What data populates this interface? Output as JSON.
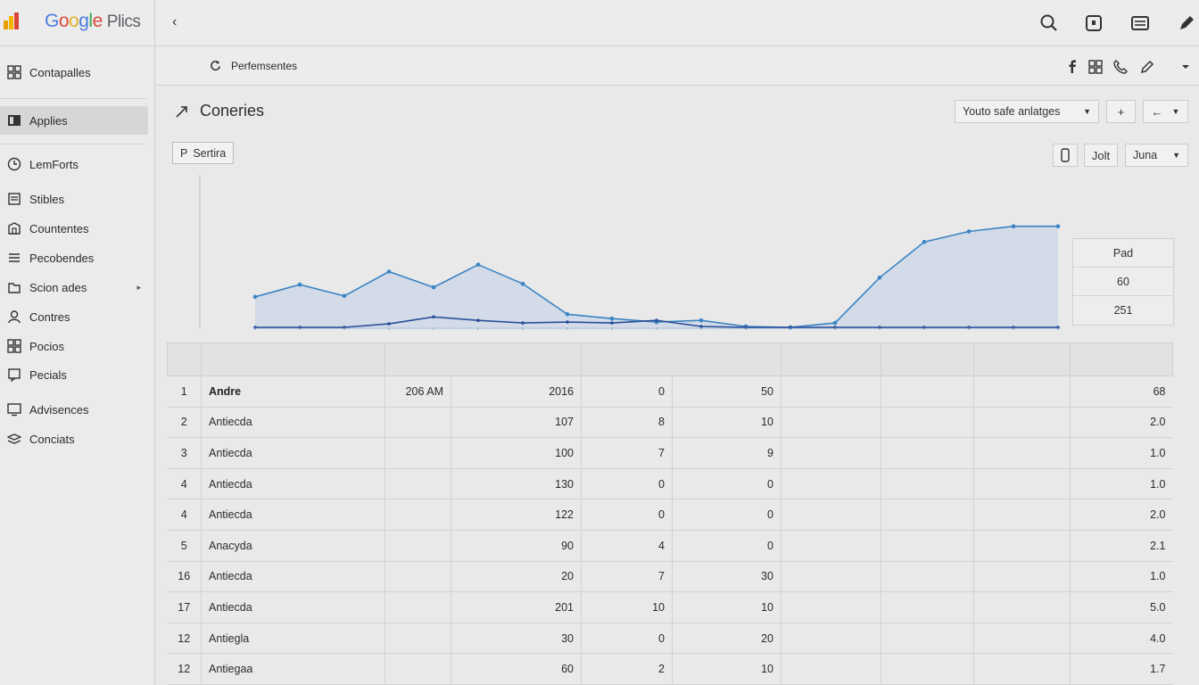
{
  "brand": {
    "g1": "G",
    "g2": "o",
    "g3": "o",
    "g4": "g",
    "g5": "l",
    "g6": "e",
    "product": "Plics"
  },
  "sidebar": {
    "items": [
      {
        "label": "Contapalles",
        "icon": "grid-icon"
      },
      {
        "label": "Applies",
        "icon": "layout-icon",
        "active": true
      },
      {
        "label": "LemForts",
        "icon": "clock-icon"
      },
      {
        "label": "Stibles",
        "icon": "document-icon"
      },
      {
        "label": "Countentes",
        "icon": "building-icon"
      },
      {
        "label": "Pecobendes",
        "icon": "list-icon"
      },
      {
        "label": "Scion ades",
        "icon": "folder-icon",
        "has_submenu": true
      },
      {
        "label": "Contres",
        "icon": "person-icon"
      },
      {
        "label": "Pocios",
        "icon": "grid-icon"
      },
      {
        "label": "Pecials",
        "icon": "message-icon"
      },
      {
        "label": "Advisences",
        "icon": "monitor-icon"
      },
      {
        "label": "Conciats",
        "icon": "layers-icon"
      }
    ]
  },
  "subheader": {
    "title": "Perfemsentes"
  },
  "page": {
    "title": "Coneries"
  },
  "controls": {
    "dropdown_main": "Youto safe anlatges",
    "add_symbol": "+",
    "back_symbol": "←",
    "filter_chip": "Sertira",
    "filter_chip_prefix": "P",
    "mid_button": "Jolt",
    "range_dropdown": "Juna"
  },
  "side_panel": {
    "rows": [
      "Pad",
      "60",
      "251"
    ]
  },
  "chart_data": {
    "type": "line",
    "x": [
      1,
      2,
      3,
      4,
      5,
      6,
      7,
      8,
      9,
      10,
      11,
      12,
      13,
      14,
      15,
      16,
      17,
      18,
      19
    ],
    "series": [
      {
        "values": [
          35,
          49,
          36,
          64,
          46,
          72,
          50,
          15,
          10,
          6,
          8,
          1,
          0,
          5,
          57,
          98,
          110,
          116,
          116
        ],
        "color": "#3a84c4",
        "fill": true
      },
      {
        "values": [
          0,
          0,
          0,
          4,
          12,
          8,
          5,
          6,
          5,
          8,
          1,
          0,
          0,
          0,
          0,
          0,
          0,
          0,
          0
        ],
        "color": "#2b4e9a",
        "fill": false
      }
    ],
    "ylim": [
      0,
      130
    ],
    "grid": false
  },
  "table": {
    "rows": [
      {
        "idx": "1",
        "name": "Andre",
        "time": "206 AM",
        "v1": "2016",
        "v2": "0",
        "v3": "50",
        "last": "68"
      },
      {
        "idx": "2",
        "name": "Antiecda",
        "time": "",
        "v1": "107",
        "v2": "8",
        "v3": "10",
        "last": "2.0"
      },
      {
        "idx": "3",
        "name": "Antiecda",
        "time": "",
        "v1": "100",
        "v2": "7",
        "v3": "9",
        "last": "1.0"
      },
      {
        "idx": "4",
        "name": "Antiecda",
        "time": "",
        "v1": "130",
        "v2": "0",
        "v3": "0",
        "last": "1.0"
      },
      {
        "idx": "4",
        "name": "Antiecda",
        "time": "",
        "v1": "122",
        "v2": "0",
        "v3": "0",
        "last": "2.0"
      },
      {
        "idx": "5",
        "name": "Anacyda",
        "time": "",
        "v1": "90",
        "v2": "4",
        "v3": "0",
        "last": "2.1"
      },
      {
        "idx": "16",
        "name": "Antiecda",
        "time": "",
        "v1": "20",
        "v2": "7",
        "v3": "30",
        "last": "1.0"
      },
      {
        "idx": "17",
        "name": "Antiecda",
        "time": "",
        "v1": "201",
        "v2": "10",
        "v3": "10",
        "last": "5.0"
      },
      {
        "idx": "12",
        "name": "Antiegla",
        "time": "",
        "v1": "30",
        "v2": "0",
        "v3": "20",
        "last": "4.0"
      },
      {
        "idx": "12",
        "name": "Antiegaa",
        "time": "",
        "v1": "60",
        "v2": "2",
        "v3": "10",
        "last": "1.7"
      }
    ]
  }
}
